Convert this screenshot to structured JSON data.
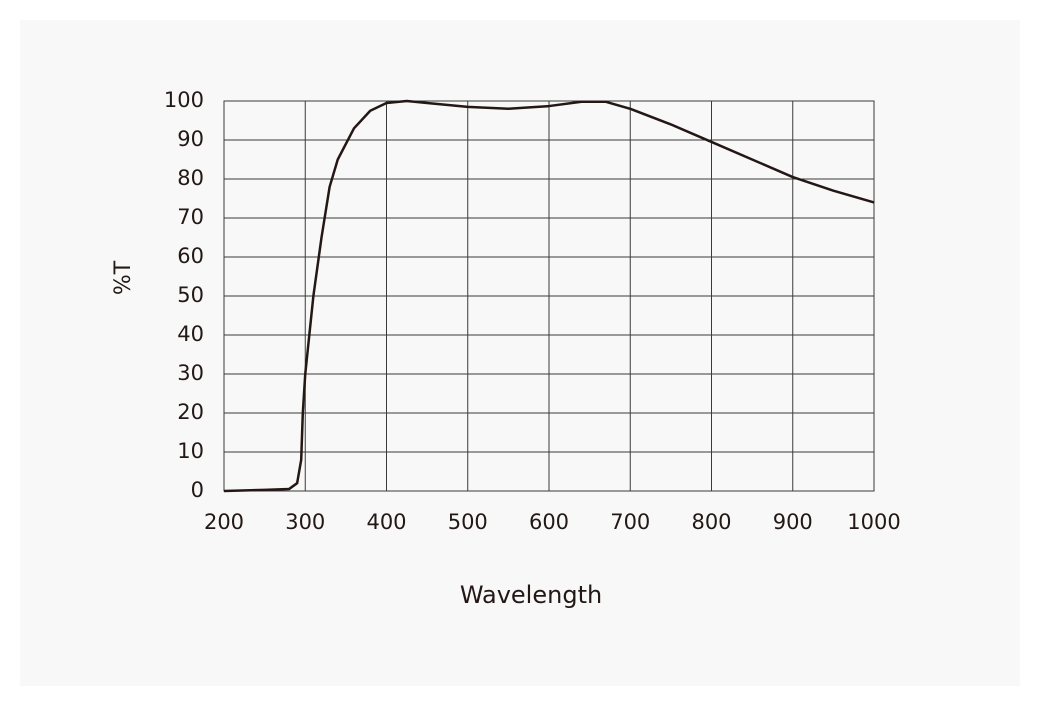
{
  "chart_data": {
    "type": "line",
    "x_label": "Wavelength",
    "y_label": "%T",
    "x": [
      200,
      250,
      280,
      290,
      295,
      297,
      300,
      310,
      320,
      330,
      340,
      360,
      380,
      400,
      425,
      450,
      500,
      550,
      600,
      640,
      670,
      700,
      750,
      800,
      850,
      900,
      950,
      1000
    ],
    "values": [
      0,
      0.3,
      0.5,
      2,
      8,
      20,
      30,
      50,
      65,
      78,
      85,
      93,
      97.5,
      99.5,
      100,
      99.5,
      98.5,
      98,
      98.7,
      99.8,
      99.8,
      98,
      94,
      89.5,
      85,
      80.5,
      77,
      74
    ],
    "color": "#231815",
    "xlim": [
      200,
      1000
    ],
    "xticks": [
      200,
      300,
      400,
      500,
      600,
      700,
      800,
      900,
      1000
    ],
    "ylim": [
      0,
      100
    ],
    "yticks": [
      0,
      10,
      20,
      30,
      40,
      50,
      60,
      70,
      80,
      90,
      100
    ],
    "grid": true
  }
}
